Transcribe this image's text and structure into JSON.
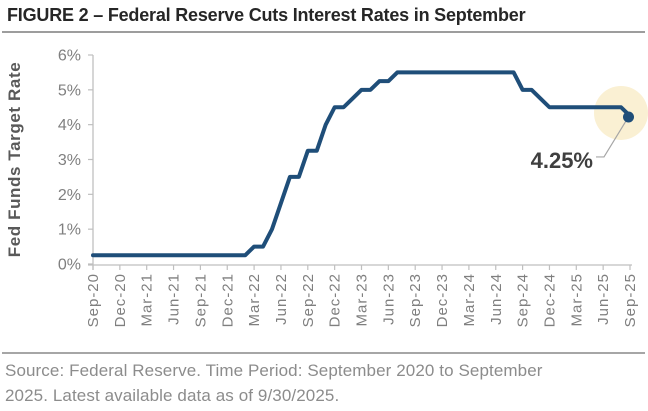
{
  "title": "FIGURE 2 – Federal Reserve Cuts Interest Rates in September",
  "footer": {
    "line1": "Source: Federal Reserve. Time Period: September 2020 to September",
    "line2": "2025. Latest available data as of 9/30/2025."
  },
  "chart_data": {
    "type": "line",
    "subtype": "step-monthly",
    "title": "FIGURE 2 – Federal Reserve Cuts Interest Rates in September",
    "ylabel": "Fed Funds Target Rate",
    "xlabel": "",
    "ylim": [
      0,
      6
    ],
    "yticks": [
      "0%",
      "1%",
      "2%",
      "3%",
      "4%",
      "5%",
      "6%"
    ],
    "grid": false,
    "legend": false,
    "line_color": "#1F4E79",
    "axis_color": "#bfbfbf",
    "x": [
      "Sep-20",
      "Oct-20",
      "Nov-20",
      "Dec-20",
      "Jan-21",
      "Feb-21",
      "Mar-21",
      "Apr-21",
      "May-21",
      "Jun-21",
      "Jul-21",
      "Aug-21",
      "Sep-21",
      "Oct-21",
      "Nov-21",
      "Dec-21",
      "Jan-22",
      "Feb-22",
      "Mar-22",
      "Apr-22",
      "May-22",
      "Jun-22",
      "Jul-22",
      "Aug-22",
      "Sep-22",
      "Oct-22",
      "Nov-22",
      "Dec-22",
      "Jan-23",
      "Feb-23",
      "Mar-23",
      "Apr-23",
      "May-23",
      "Jun-23",
      "Jul-23",
      "Aug-23",
      "Sep-23",
      "Oct-23",
      "Nov-23",
      "Dec-23",
      "Jan-24",
      "Feb-24",
      "Mar-24",
      "Apr-24",
      "May-24",
      "Jun-24",
      "Jul-24",
      "Aug-24",
      "Sep-24",
      "Oct-24",
      "Nov-24",
      "Dec-24",
      "Jan-25",
      "Feb-25",
      "Mar-25",
      "Apr-25",
      "May-25",
      "Jun-25",
      "Jul-25",
      "Aug-25",
      "Sep-25"
    ],
    "xtick_every": 3,
    "xtick_labels": [
      "Sep-20",
      "Dec-20",
      "Mar-21",
      "Jun-21",
      "Sep-21",
      "Dec-21",
      "Mar-22",
      "Jun-22",
      "Sep-22",
      "Dec-22",
      "Mar-23",
      "Jun-23",
      "Sep-23",
      "Dec-23",
      "Mar-24",
      "Jun-24",
      "Sep-24",
      "Dec-24",
      "Mar-25",
      "Jun-25",
      "Sep-25"
    ],
    "series": [
      {
        "name": "Fed Funds Target Rate",
        "values": [
          0.25,
          0.25,
          0.25,
          0.25,
          0.25,
          0.25,
          0.25,
          0.25,
          0.25,
          0.25,
          0.25,
          0.25,
          0.25,
          0.25,
          0.25,
          0.25,
          0.25,
          0.25,
          0.5,
          0.5,
          1.0,
          1.75,
          2.5,
          2.5,
          3.25,
          3.25,
          4.0,
          4.5,
          4.5,
          4.75,
          5.0,
          5.0,
          5.25,
          5.25,
          5.5,
          5.5,
          5.5,
          5.5,
          5.5,
          5.5,
          5.5,
          5.5,
          5.5,
          5.5,
          5.5,
          5.5,
          5.5,
          5.5,
          5.0,
          5.0,
          4.75,
          4.5,
          4.5,
          4.5,
          4.5,
          4.5,
          4.5,
          4.5,
          4.5,
          4.5,
          4.25
        ]
      }
    ],
    "annotation": {
      "label": "4.25%",
      "highlight_color": "#FAF0D3",
      "callout_color": "#a6a6a6",
      "text_color": "#3f3f3f"
    }
  }
}
